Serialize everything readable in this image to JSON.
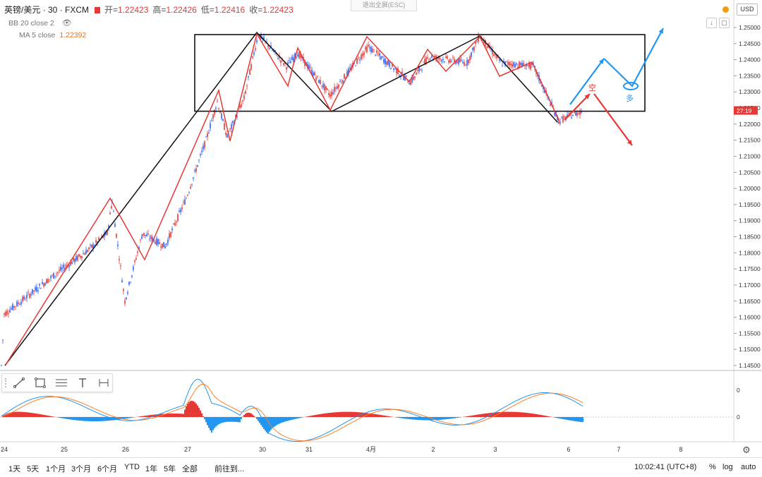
{
  "header": {
    "symbol": "英镑/美元 · 30 · FXCM",
    "open_label": "开=",
    "open": "1.22423",
    "high_label": "高=",
    "high": "1.22426",
    "low_label": "低=",
    "low": "1.22416",
    "close_label": "收=",
    "close": "1.22423"
  },
  "indicators": {
    "bb": "BB 20 close 2",
    "ma": "MA 5 close",
    "ma_value": "1.22392"
  },
  "fullscreen_exit": "退出全屏(ESC)",
  "currency": "USD",
  "countdown": "27:19",
  "toolbar_icons": [
    "trendline-icon",
    "rectangle-icon",
    "fib-icon",
    "text-icon",
    "measure-icon"
  ],
  "bottom": {
    "ranges": [
      "1天",
      "5天",
      "1个月",
      "3个月",
      "6个月",
      "YTD",
      "1年",
      "5年",
      "全部"
    ],
    "goto": "前往到...",
    "time": "10:02:41 (UTC+8)",
    "pct": "%",
    "log": "log",
    "auto": "auto"
  },
  "colors": {
    "up": "#2962ff",
    "down": "#e53935",
    "zigzag_red": "#e53935",
    "zigzag_black": "#111111",
    "arrow_blue": "#2196f3",
    "macd_line": "#2196f3",
    "signal_line": "#ff7f27",
    "hist_pos": "#e53935",
    "hist_neg": "#2196f3"
  },
  "chart_data": {
    "type": "candlestick",
    "ylim": [
      1.143,
      1.2535
    ],
    "yticks": [
      "1.25000",
      "1.24500",
      "1.24000",
      "1.23500",
      "1.23000",
      "1.22500",
      "1.22000",
      "1.21500",
      "1.21000",
      "1.20500",
      "1.20000",
      "1.19500",
      "1.19000",
      "1.18500",
      "1.18000",
      "1.17500",
      "1.17000",
      "1.16500",
      "1.16000",
      "1.15500",
      "1.15000",
      "1.14500"
    ],
    "current_price_label": "1.22423",
    "xticks": [
      "24",
      "25",
      "26",
      "27",
      "30",
      "31",
      "4月",
      "2",
      "3",
      "6",
      "7",
      "8"
    ],
    "price_path": [
      {
        "x": "24",
        "y": 1.145
      },
      {
        "x": "24",
        "y": 1.161
      },
      {
        "x": "24",
        "y": 1.165
      },
      {
        "x": "25",
        "y": 1.174
      },
      {
        "x": "25",
        "y": 1.18
      },
      {
        "x": "25",
        "y": 1.186
      },
      {
        "x": "25",
        "y": 1.196
      },
      {
        "x": "26",
        "y": 1.165
      },
      {
        "x": "26",
        "y": 1.186
      },
      {
        "x": "26",
        "y": 1.182
      },
      {
        "x": "26",
        "y": 1.197
      },
      {
        "x": "27",
        "y": 1.215
      },
      {
        "x": "27",
        "y": 1.227
      },
      {
        "x": "27",
        "y": 1.216
      },
      {
        "x": "27",
        "y": 1.228
      },
      {
        "x": "30",
        "y": 1.248
      },
      {
        "x": "30",
        "y": 1.238
      },
      {
        "x": "31",
        "y": 1.242
      },
      {
        "x": "31",
        "y": 1.229
      },
      {
        "x": "4月",
        "y": 1.244
      },
      {
        "x": "4月",
        "y": 1.233
      },
      {
        "x": "2",
        "y": 1.241
      },
      {
        "x": "2",
        "y": 1.239
      },
      {
        "x": "3",
        "y": 1.2475
      },
      {
        "x": "3",
        "y": 1.239
      },
      {
        "x": "3",
        "y": 1.238
      },
      {
        "x": "6",
        "y": 1.221
      },
      {
        "x": "6",
        "y": 1.2242
      }
    ],
    "box": {
      "x_start": "27",
      "x_end": "8",
      "y_low": 1.224,
      "y_high": 1.2478
    },
    "annotations": [
      {
        "text": "空",
        "color": "#e53935"
      },
      {
        "text": "多",
        "color": "#2196f3"
      }
    ],
    "macd_zero_label": "0",
    "macd_ticks": [
      "0",
      "0"
    ]
  }
}
